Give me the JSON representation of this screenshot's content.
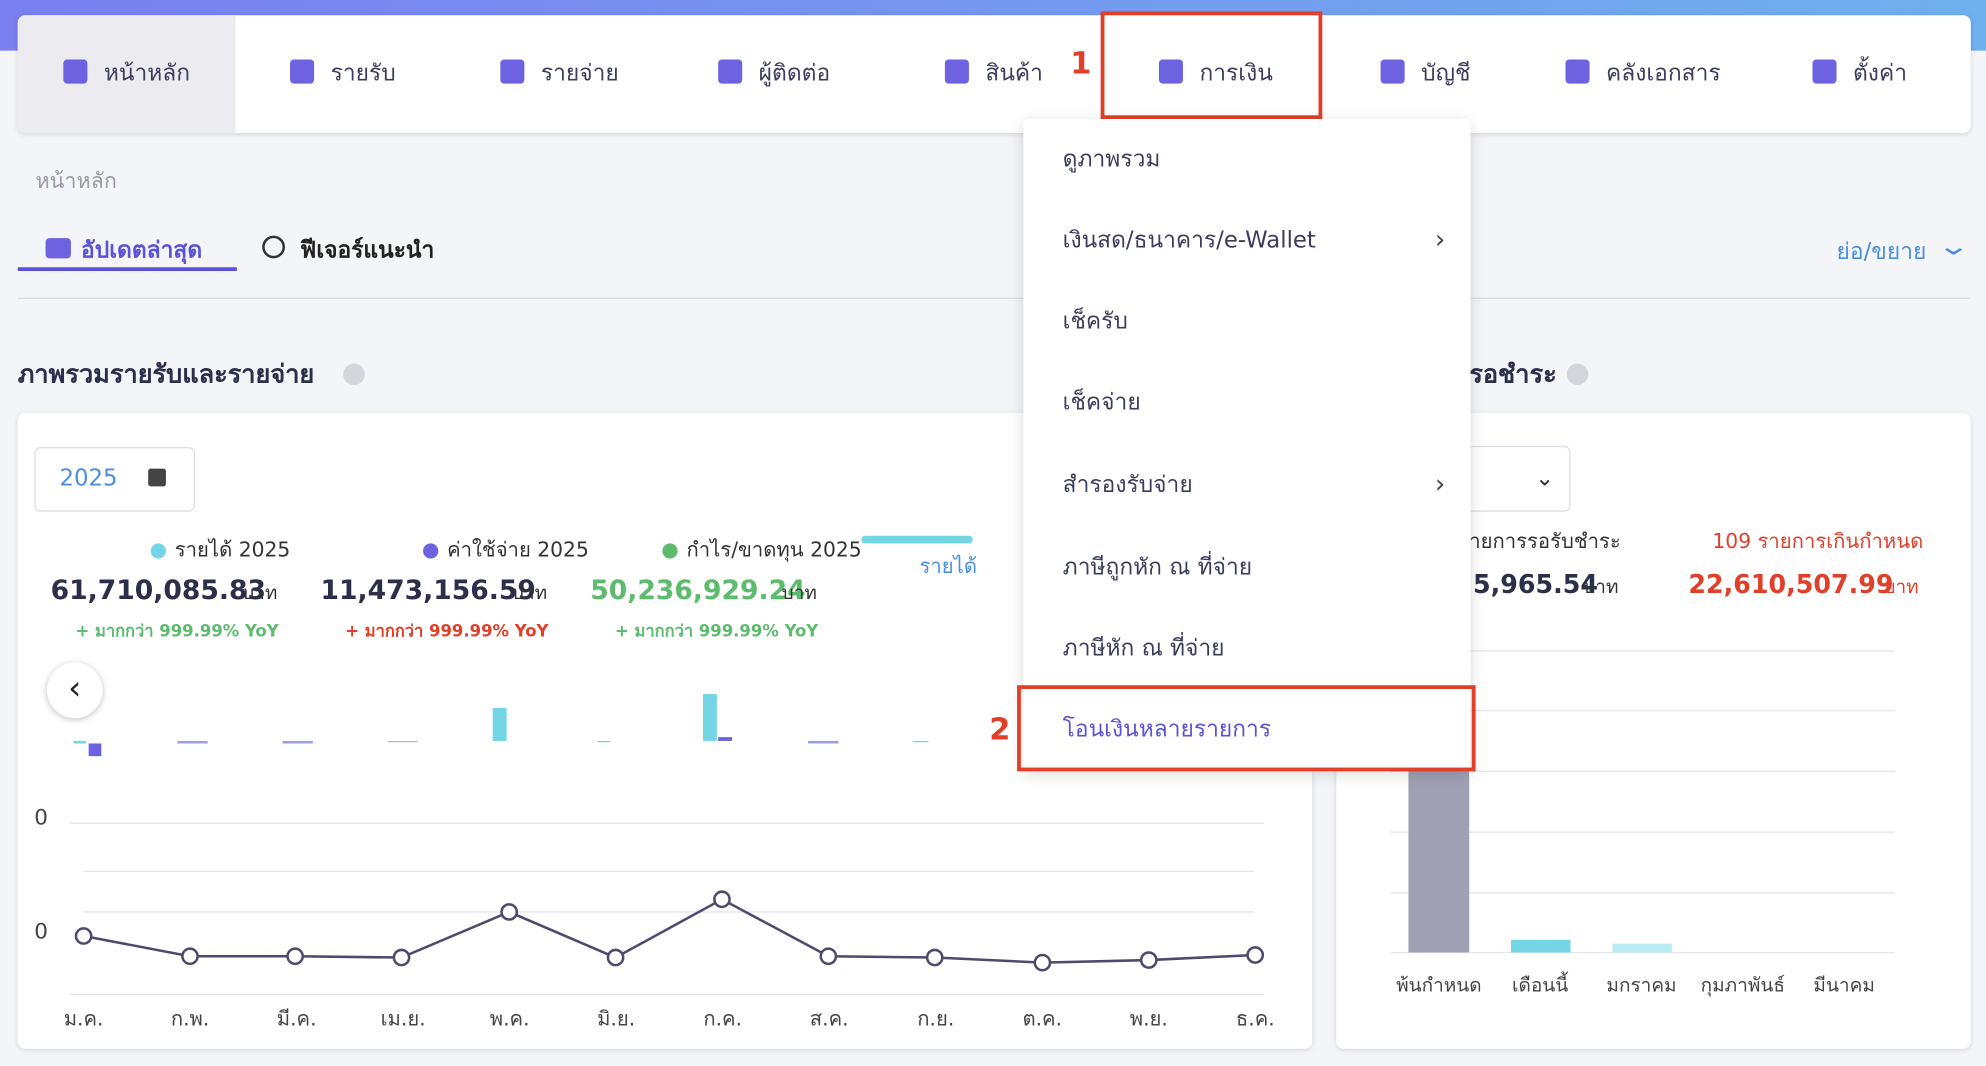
{
  "nav": {
    "items": [
      "หน้าหลัก",
      "รายรับ",
      "รายจ่าย",
      "ผู้ติดต่อ",
      "สินค้า",
      "การเงิน",
      "บัญชี",
      "คลังเอกสาร",
      "ตั้งค่า"
    ]
  },
  "steps": [
    "1",
    "2"
  ],
  "breadcrumb": "หน้าหลัก",
  "tabs": [
    "อัปเดตล่าสุด",
    "ฟีเจอร์แนะนำ"
  ],
  "collapse": "ย่อ/ขยาย",
  "overview": {
    "title": "ภาพรวมรายรับและรายจ่าย",
    "year": "2025",
    "stats": [
      {
        "label": "รายได้ 2025",
        "amount": "61,710,085.83",
        "unit": "บาท",
        "change": "+ มากกว่า 999.99% YoY"
      },
      {
        "label": "ค่าใช้จ่าย 2025",
        "amount": "11,473,156.59",
        "unit": "บาท",
        "change": "+ มากกว่า 999.99% YoY"
      },
      {
        "label": "กำไร/ขาดทุน 2025",
        "amount": "50,236,929.24",
        "unit": "บาท",
        "change": "+ มากกว่า 999.99% YoY"
      }
    ],
    "legend": "รายได้",
    "axis_labels": [
      "0",
      "0"
    ],
    "months": [
      "ม.ค.",
      "ก.พ.",
      "มี.ค.",
      "เม.ย.",
      "พ.ค.",
      "มิ.ย.",
      "ก.ค.",
      "ส.ค.",
      "ก.ย.",
      "ต.ค.",
      "พ.ย.",
      "ธ.ค."
    ]
  },
  "pending": {
    "title": "รอชำระ",
    "label": "ายการรอรับชำระ",
    "amount": "5,965.54",
    "unit": "บาท",
    "overdue_label": "109 รายการเกินกำหนด",
    "overdue_amount": "22,610,507.99",
    "overdue_unit": "บาท",
    "categories": [
      "พ้นกำหนด",
      "เดือนนี้",
      "มกราคม",
      "กุมภาพันธ์",
      "มีนาคม"
    ]
  },
  "dropdown": {
    "items": [
      "ดูภาพรวม",
      "เงินสด/ธนาคาร/e-Wallet",
      "เช็ครับ",
      "เช็คจ่าย",
      "สำรองรับจ่าย",
      "ภาษีถูกหัก ณ ที่จ่าย",
      "ภาษีหัก ณ ที่จ่าย",
      "โอนเงินหลายรายการ"
    ]
  }
}
